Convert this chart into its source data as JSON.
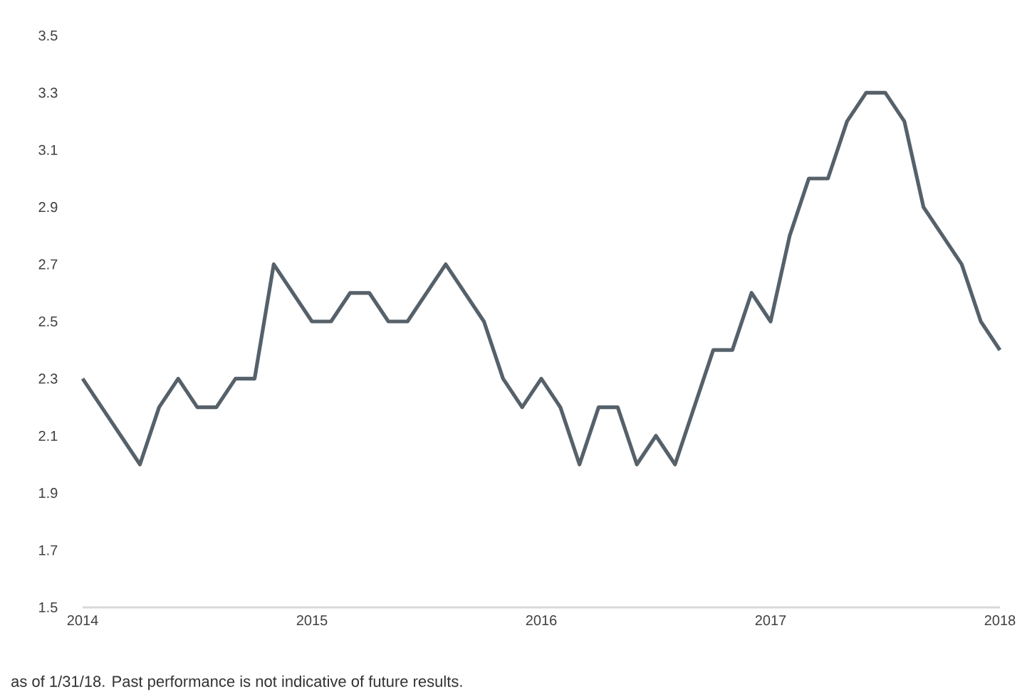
{
  "chart_data": {
    "type": "line",
    "color": "#56616a",
    "x": [
      "2014-01",
      "2014-02",
      "2014-03",
      "2014-04",
      "2014-05",
      "2014-06",
      "2014-07",
      "2014-08",
      "2014-09",
      "2014-10",
      "2014-11",
      "2014-12",
      "2015-01",
      "2015-02",
      "2015-03",
      "2015-04",
      "2015-05",
      "2015-06",
      "2015-07",
      "2015-08",
      "2015-09",
      "2015-10",
      "2015-11",
      "2015-12",
      "2016-01",
      "2016-02",
      "2016-03",
      "2016-04",
      "2016-05",
      "2016-06",
      "2016-07",
      "2016-08",
      "2016-09",
      "2016-10",
      "2016-11",
      "2016-12",
      "2017-01",
      "2017-02",
      "2017-03",
      "2017-04",
      "2017-05",
      "2017-06",
      "2017-07",
      "2017-08",
      "2017-09",
      "2017-10",
      "2017-11",
      "2017-12",
      "2018-01"
    ],
    "values": [
      2.3,
      2.2,
      2.1,
      2.0,
      2.2,
      2.3,
      2.2,
      2.2,
      2.3,
      2.3,
      2.7,
      2.6,
      2.5,
      2.5,
      2.6,
      2.6,
      2.5,
      2.5,
      2.6,
      2.7,
      2.6,
      2.5,
      2.3,
      2.2,
      2.3,
      2.2,
      2.0,
      2.2,
      2.2,
      2.0,
      2.1,
      2.0,
      2.2,
      2.4,
      2.4,
      2.6,
      2.5,
      2.8,
      3.0,
      3.0,
      3.2,
      3.3,
      3.3,
      3.2,
      2.9,
      2.8,
      2.7,
      2.5,
      2.4
    ],
    "xlim": [
      "2014-01",
      "2018-01"
    ],
    "xticks": [
      "2014",
      "2015",
      "2016",
      "2017",
      "2018"
    ],
    "ylim": [
      1.5,
      3.5
    ],
    "yticks": [
      1.5,
      1.7,
      1.9,
      2.1,
      2.3,
      2.5,
      2.7,
      2.9,
      3.1,
      3.3,
      3.5
    ],
    "grid": false,
    "marker": "none",
    "line_style": "solid",
    "annotations": [
      "as of 1/31/18. Past performance is not indicative of future results."
    ]
  }
}
